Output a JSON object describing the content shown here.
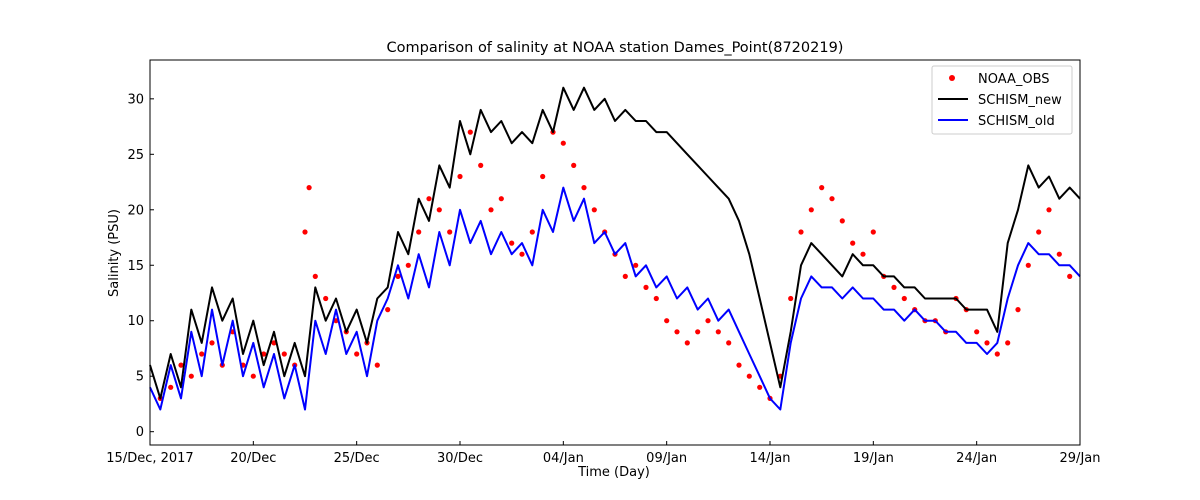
{
  "chart_data": {
    "type": "line",
    "title": "Comparison of salinity at NOAA station Dames_Point(8720219)",
    "xlabel": "Time (Day)",
    "ylabel": "Salinity (PSU)",
    "xlim": [
      0,
      45
    ],
    "ylim": [
      -1.2,
      33.5
    ],
    "x_unit": "days since 15/Dec/2017",
    "x_ticks": [
      {
        "value": 0,
        "label": "15/Dec, 2017"
      },
      {
        "value": 5,
        "label": "20/Dec"
      },
      {
        "value": 10,
        "label": "25/Dec"
      },
      {
        "value": 15,
        "label": "30/Dec"
      },
      {
        "value": 20,
        "label": "04/Jan"
      },
      {
        "value": 25,
        "label": "09/Jan"
      },
      {
        "value": 30,
        "label": "14/Jan"
      },
      {
        "value": 35,
        "label": "19/Jan"
      },
      {
        "value": 40,
        "label": "24/Jan"
      },
      {
        "value": 45,
        "label": "29/Jan"
      }
    ],
    "y_ticks": [
      {
        "value": 0,
        "label": "0"
      },
      {
        "value": 5,
        "label": "5"
      },
      {
        "value": 10,
        "label": "10"
      },
      {
        "value": 15,
        "label": "15"
      },
      {
        "value": 20,
        "label": "20"
      },
      {
        "value": 25,
        "label": "25"
      },
      {
        "value": 30,
        "label": "30"
      }
    ],
    "legend": {
      "position": "top-right",
      "entries": [
        "NOAA_OBS",
        "SCHISM_new",
        "SCHISM_old"
      ]
    },
    "grid": false,
    "series": [
      {
        "name": "NOAA_OBS",
        "style": "markers",
        "color": "#ff0000",
        "x": [
          0.5,
          1.0,
          1.5,
          2.0,
          2.5,
          3.0,
          3.5,
          4.0,
          4.5,
          5.0,
          5.5,
          6.0,
          6.5,
          7.0,
          7.5,
          7.7,
          8.0,
          8.5,
          9.0,
          9.5,
          10.0,
          10.5,
          11.0,
          11.5,
          12.0,
          12.5,
          13.0,
          13.5,
          14.0,
          14.5,
          15.0,
          15.5,
          16.0,
          16.5,
          17.0,
          17.5,
          18.0,
          18.5,
          19.0,
          19.5,
          20.0,
          20.5,
          21.0,
          21.5,
          22.0,
          22.5,
          23.0,
          23.5,
          24.0,
          24.5,
          25.0,
          25.5,
          26.0,
          26.5,
          27.0,
          27.5,
          28.0,
          28.5,
          29.0,
          29.5,
          30.0,
          30.5,
          31.0,
          31.5,
          32.0,
          32.5,
          33.0,
          33.5,
          34.0,
          34.5,
          35.0,
          35.5,
          36.0,
          36.5,
          37.0,
          37.5,
          38.0,
          38.5,
          39.0,
          39.5,
          40.0,
          40.5,
          41.0,
          41.5,
          42.0,
          42.5,
          43.0,
          43.5,
          44.0,
          44.5
        ],
        "y": [
          3,
          4,
          6,
          5,
          7,
          8,
          6,
          9,
          6,
          5,
          7,
          8,
          7,
          6,
          18,
          22,
          14,
          12,
          10,
          9,
          7,
          8,
          6,
          11,
          14,
          15,
          18,
          21,
          20,
          18,
          23,
          27,
          24,
          20,
          21,
          17,
          16,
          18,
          23,
          27,
          26,
          24,
          22,
          20,
          18,
          16,
          14,
          15,
          13,
          12,
          10,
          9,
          8,
          9,
          10,
          9,
          8,
          6,
          5,
          4,
          3,
          5,
          12,
          18,
          20,
          22,
          21,
          19,
          17,
          16,
          18,
          14,
          13,
          12,
          11,
          10,
          10,
          9,
          12,
          11,
          9,
          8,
          7,
          8,
          11,
          15,
          18,
          20,
          16,
          14
        ]
      },
      {
        "name": "SCHISM_new",
        "style": "line",
        "color": "#000000",
        "x": [
          0,
          0.5,
          1,
          1.5,
          2,
          2.5,
          3,
          3.5,
          4,
          4.5,
          5,
          5.5,
          6,
          6.5,
          7,
          7.5,
          8,
          8.5,
          9,
          9.5,
          10,
          10.5,
          11,
          11.5,
          12,
          12.5,
          13,
          13.5,
          14,
          14.5,
          15,
          15.5,
          16,
          16.5,
          17,
          17.5,
          18,
          18.5,
          19,
          19.5,
          20,
          20.5,
          21,
          21.5,
          22,
          22.5,
          23,
          23.5,
          24,
          24.5,
          25,
          25.5,
          26,
          26.5,
          27,
          27.5,
          28,
          28.5,
          29,
          29.5,
          30,
          30.5,
          31,
          31.5,
          32,
          32.5,
          33,
          33.5,
          34,
          34.5,
          35,
          35.5,
          36,
          36.5,
          37,
          37.5,
          38,
          38.5,
          39,
          39.5,
          40,
          40.5,
          41,
          41.5,
          42,
          42.5,
          43,
          43.5,
          44,
          44.5,
          45
        ],
        "y": [
          6,
          3,
          7,
          4,
          11,
          8,
          13,
          10,
          12,
          7,
          10,
          6,
          9,
          5,
          8,
          5,
          13,
          10,
          12,
          9,
          11,
          8,
          12,
          13,
          18,
          16,
          21,
          19,
          24,
          22,
          28,
          25,
          29,
          27,
          28,
          26,
          27,
          26,
          29,
          27,
          31,
          29,
          31,
          29,
          30,
          28,
          29,
          28,
          28,
          27,
          27,
          26,
          25,
          24,
          23,
          22,
          21,
          19,
          16,
          12,
          8,
          4,
          9,
          15,
          17,
          16,
          15,
          14,
          16,
          15,
          15,
          14,
          14,
          13,
          13,
          12,
          12,
          12,
          12,
          11,
          11,
          11,
          9,
          17,
          20,
          24,
          22,
          23,
          21,
          22,
          21
        ]
      },
      {
        "name": "SCHISM_old",
        "style": "line",
        "color": "#0000ff",
        "x": [
          0,
          0.5,
          1,
          1.5,
          2,
          2.5,
          3,
          3.5,
          4,
          4.5,
          5,
          5.5,
          6,
          6.5,
          7,
          7.5,
          8,
          8.5,
          9,
          9.5,
          10,
          10.5,
          11,
          11.5,
          12,
          12.5,
          13,
          13.5,
          14,
          14.5,
          15,
          15.5,
          16,
          16.5,
          17,
          17.5,
          18,
          18.5,
          19,
          19.5,
          20,
          20.5,
          21,
          21.5,
          22,
          22.5,
          23,
          23.5,
          24,
          24.5,
          25,
          25.5,
          26,
          26.5,
          27,
          27.5,
          28,
          28.5,
          29,
          29.5,
          30,
          30.5,
          31,
          31.5,
          32,
          32.5,
          33,
          33.5,
          34,
          34.5,
          35,
          35.5,
          36,
          36.5,
          37,
          37.5,
          38,
          38.5,
          39,
          39.5,
          40,
          40.5,
          41,
          41.5,
          42,
          42.5,
          43,
          43.5,
          44,
          44.5,
          45
        ],
        "y": [
          4,
          2,
          6,
          3,
          9,
          5,
          11,
          6,
          10,
          5,
          8,
          4,
          7,
          3,
          6,
          2,
          10,
          7,
          11,
          7,
          9,
          5,
          10,
          12,
          15,
          12,
          16,
          13,
          18,
          15,
          20,
          17,
          19,
          16,
          18,
          16,
          17,
          15,
          20,
          18,
          22,
          19,
          21,
          17,
          18,
          16,
          17,
          14,
          15,
          13,
          14,
          12,
          13,
          11,
          12,
          10,
          11,
          9,
          7,
          5,
          3,
          2,
          8,
          12,
          14,
          13,
          13,
          12,
          13,
          12,
          12,
          11,
          11,
          10,
          11,
          10,
          10,
          9,
          9,
          8,
          8,
          7,
          8,
          12,
          15,
          17,
          16,
          16,
          15,
          15,
          14
        ]
      }
    ]
  }
}
